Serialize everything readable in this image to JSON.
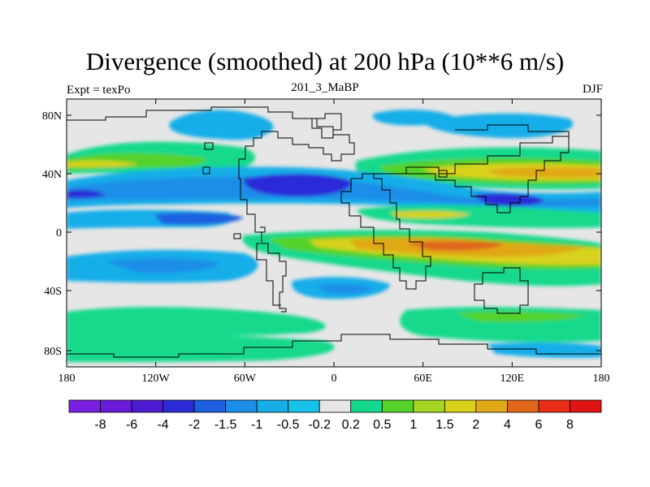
{
  "header": {
    "title": "Divergence (smoothed) at 200 hPa (10**6 m/s)",
    "left_label": "Expt = texPo",
    "center_label": "201_3_MaBP",
    "right_label": "DJF"
  },
  "axes": {
    "x_ticks": [
      "180",
      "120W",
      "60W",
      "0",
      "60E",
      "120E",
      "180"
    ],
    "y_ticks": [
      "80N",
      "40N",
      "0",
      "40S",
      "80S"
    ]
  },
  "colorbar": {
    "colors": [
      "#7a1fe0",
      "#6a1bd8",
      "#4d1bd0",
      "#2b2bd8",
      "#1c5fe0",
      "#1c8ee8",
      "#18aee8",
      "#17c3e8",
      "#e6e6e6",
      "#14d98c",
      "#54d22a",
      "#a6d623",
      "#d8d21c",
      "#e0a816",
      "#e0661a",
      "#e82d14",
      "#e01414"
    ],
    "labels": [
      "-8",
      "-6",
      "-4",
      "-2",
      "-1.5",
      "-1",
      "-0.5",
      "-0.2",
      "0.2",
      "0.5",
      "1",
      "1.5",
      "2",
      "4",
      "6",
      "8"
    ]
  },
  "colors": {
    "background": "#e6e6e6",
    "coast": "#000000"
  }
}
